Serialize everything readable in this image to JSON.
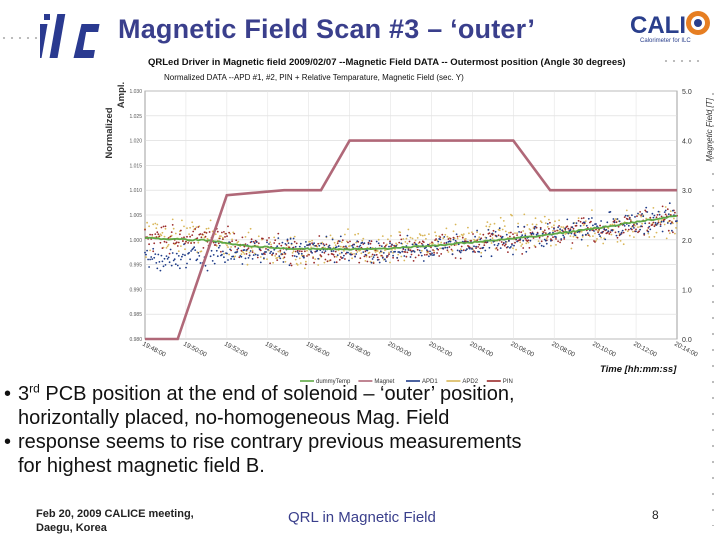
{
  "slide": {
    "title": "Magnetic Field Scan #3 – ‘outer’",
    "logo_left": "ilc",
    "logo_right": "CALICE",
    "logo_right_subtitle": "Calorimeter for ILC",
    "bullets": [
      {
        "pre": "3",
        "sup": "rd",
        "post": " PCB position at the end of solenoid – ‘outer’ position,",
        "cont": "horizontally placed, no-homogeneous Mag. Field"
      },
      {
        "pre": "response seems to rise contrary previous measurements",
        "sup": "",
        "post": "",
        "cont": "for highest magnetic field B."
      }
    ],
    "footer_left_line1": "Feb 20, 2009 CALICE meeting,",
    "footer_left_line2": "Daegu, Korea",
    "footer_center": "QRL in Magnetic Field",
    "page_number": "8"
  },
  "chart_data": {
    "type": "line",
    "title": "QRLed Driver in Magnetic field 2009/02/07  --Magnetic Field DATA -- Outermost position  (Angle 30 degrees)",
    "subtitle": "Normalized DATA  --APD #1, #2, PIN + Relative Temparature, Magnetic Field (sec. Y)",
    "ylabel_line1": "Normalized",
    "ylabel_line2": "Ampl.",
    "y2label": "Magnetic Field [T]",
    "xlabel": "Time [hh:mm:ss]",
    "ylim": [
      0.98,
      1.03
    ],
    "y_ticks": [
      "1.030",
      "1.025",
      "1.020",
      "1.015",
      "1.010",
      "1.005",
      "1.000",
      "0.995",
      "0.990",
      "0.985",
      "0.980"
    ],
    "y2lim": [
      0,
      5
    ],
    "y2_ticks": [
      "5.0",
      "4.0",
      "3.0",
      "2.0",
      "1.0",
      "0.0"
    ],
    "x_ticks": [
      "19:48:00",
      "19:50:00",
      "19:52:00",
      "19:54:00",
      "19:56:00",
      "19:58:00",
      "20:00:00",
      "20:02:00",
      "20:04:00",
      "20:06:00",
      "20:08:00",
      "20:10:00",
      "20:12:00",
      "20:14:00"
    ],
    "grid": true,
    "legend_position": "bottom",
    "legend": [
      "dummyTemp",
      "Magnet",
      "APD1",
      "APD2",
      "PIN"
    ],
    "colors": {
      "temp": "#5fa845",
      "magnet": "#b06878",
      "apd1": "#1f3c88",
      "apd2": "#d9b75a",
      "pin": "#9a2a2a"
    },
    "magnet_field_T": {
      "x": [
        0,
        0.8,
        2.0,
        3.4,
        4.3,
        5.0,
        9.0,
        9.9,
        13.0
      ],
      "y": [
        0.0,
        0.0,
        2.9,
        3.0,
        3.0,
        4.0,
        4.0,
        3.0,
        3.0
      ]
    },
    "temp_norm": {
      "x": [
        0,
        1.5,
        2.5,
        3.5,
        5,
        6,
        7,
        8,
        9,
        10,
        11,
        12,
        13
      ],
      "y": [
        1.0003,
        0.9999,
        0.9988,
        0.9982,
        0.9981,
        0.9983,
        0.9988,
        0.9995,
        1.0002,
        1.0012,
        1.0023,
        1.0036,
        1.0048
      ]
    },
    "apd1_norm": {
      "x": [
        0,
        1.5,
        2.5,
        3.5,
        5,
        6,
        7,
        8,
        9,
        10,
        11,
        12,
        13
      ],
      "y": [
        0.996,
        0.9965,
        0.9975,
        0.998,
        0.9978,
        0.9979,
        0.9985,
        0.9992,
        0.9998,
        1.0012,
        1.0025,
        1.0035,
        1.0045
      ]
    },
    "apd2_norm": {
      "x": [
        0,
        1.5,
        2.5,
        3.5,
        5,
        6,
        7,
        8,
        9,
        10,
        11,
        12,
        13
      ],
      "y": [
        1.001,
        1.0008,
        0.9985,
        0.9975,
        0.998,
        0.9985,
        0.9998,
        1.0005,
        1.001,
        1.0015,
        1.002,
        1.0028,
        1.0035
      ]
    },
    "pin_norm": {
      "x": [
        0,
        1.5,
        2.5,
        3.5,
        5,
        6,
        7,
        8,
        9,
        10,
        11,
        12,
        13
      ],
      "y": [
        1.0005,
        1.0003,
        0.9988,
        0.998,
        0.9975,
        0.9978,
        0.9984,
        0.9992,
        1.0,
        1.001,
        1.0022,
        1.003,
        1.004
      ]
    }
  }
}
